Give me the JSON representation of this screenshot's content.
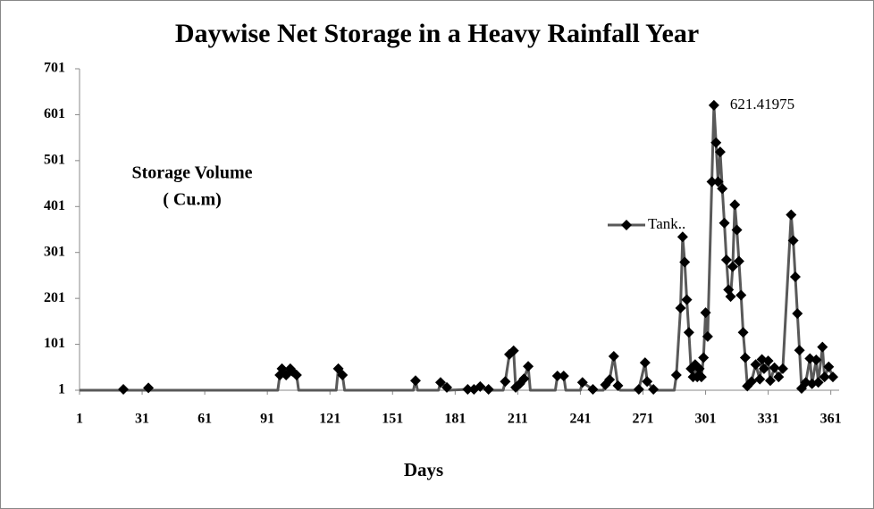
{
  "chart_data": {
    "type": "line",
    "title": "Daywise Net Storage in a Heavy Rainfall Year",
    "xlabel": "Days",
    "ylabel": [
      "Storage Volume",
      "( Cu.m)"
    ],
    "xlim": [
      1,
      365
    ],
    "xticks": [
      1,
      31,
      61,
      91,
      121,
      151,
      181,
      211,
      241,
      271,
      301,
      331,
      361
    ],
    "ylim": [
      1,
      701
    ],
    "yticks": [
      1,
      101,
      201,
      301,
      401,
      501,
      601,
      701
    ],
    "grid": false,
    "legend": "right",
    "x": [
      1,
      21,
      22,
      23,
      33,
      34,
      35,
      96,
      97,
      98,
      100,
      102,
      103,
      105,
      106,
      124,
      125,
      127,
      128,
      161,
      162,
      163,
      173,
      174,
      177,
      178,
      187,
      190,
      193,
      197,
      198,
      204,
      205,
      207,
      209,
      210,
      212,
      214,
      216,
      217,
      229,
      230,
      233,
      234,
      241,
      242,
      247,
      248,
      252,
      253,
      255,
      257,
      259,
      260,
      268,
      269,
      272,
      273,
      276,
      277,
      286,
      287,
      289,
      290,
      291,
      292,
      293,
      294,
      295,
      296,
      297,
      298,
      299,
      300,
      301,
      302,
      304,
      305,
      306,
      307,
      308,
      309,
      310,
      311,
      312,
      313,
      314,
      315,
      316,
      317,
      318,
      319,
      320,
      321,
      323,
      325,
      327,
      328,
      329,
      331,
      332,
      334,
      336,
      338,
      342,
      343,
      344,
      345,
      346,
      347,
      349,
      351,
      352,
      354,
      355,
      357,
      358,
      360,
      362
    ],
    "series": [
      {
        "name": "Tank..",
        "color": "#595959",
        "values": [
          1,
          1,
          3,
          1,
          1,
          6,
          1,
          1,
          34,
          48,
          34,
          48,
          42,
          34,
          1,
          1,
          48,
          34,
          1,
          1,
          22,
          1,
          1,
          18,
          7,
          1,
          3,
          3,
          9,
          3,
          1,
          1,
          20,
          79,
          87,
          7,
          15,
          26,
          53,
          1,
          1,
          32,
          32,
          1,
          1,
          18,
          3,
          1,
          1,
          13,
          24,
          75,
          11,
          1,
          1,
          3,
          61,
          20,
          3,
          1,
          1,
          34,
          180,
          335,
          280,
          198,
          127,
          48,
          30,
          57,
          30,
          48,
          30,
          72,
          170,
          118,
          455,
          621.41975,
          540,
          455,
          520,
          440,
          365,
          285,
          220,
          205,
          270,
          405,
          350,
          282,
          208,
          127,
          72,
          10,
          20,
          57,
          25,
          68,
          48,
          65,
          22,
          50,
          30,
          48,
          383,
          327,
          248,
          168,
          88,
          5,
          18,
          70,
          15,
          67,
          18,
          95,
          30,
          52,
          30
        ]
      }
    ],
    "data_label_index": 77
  }
}
